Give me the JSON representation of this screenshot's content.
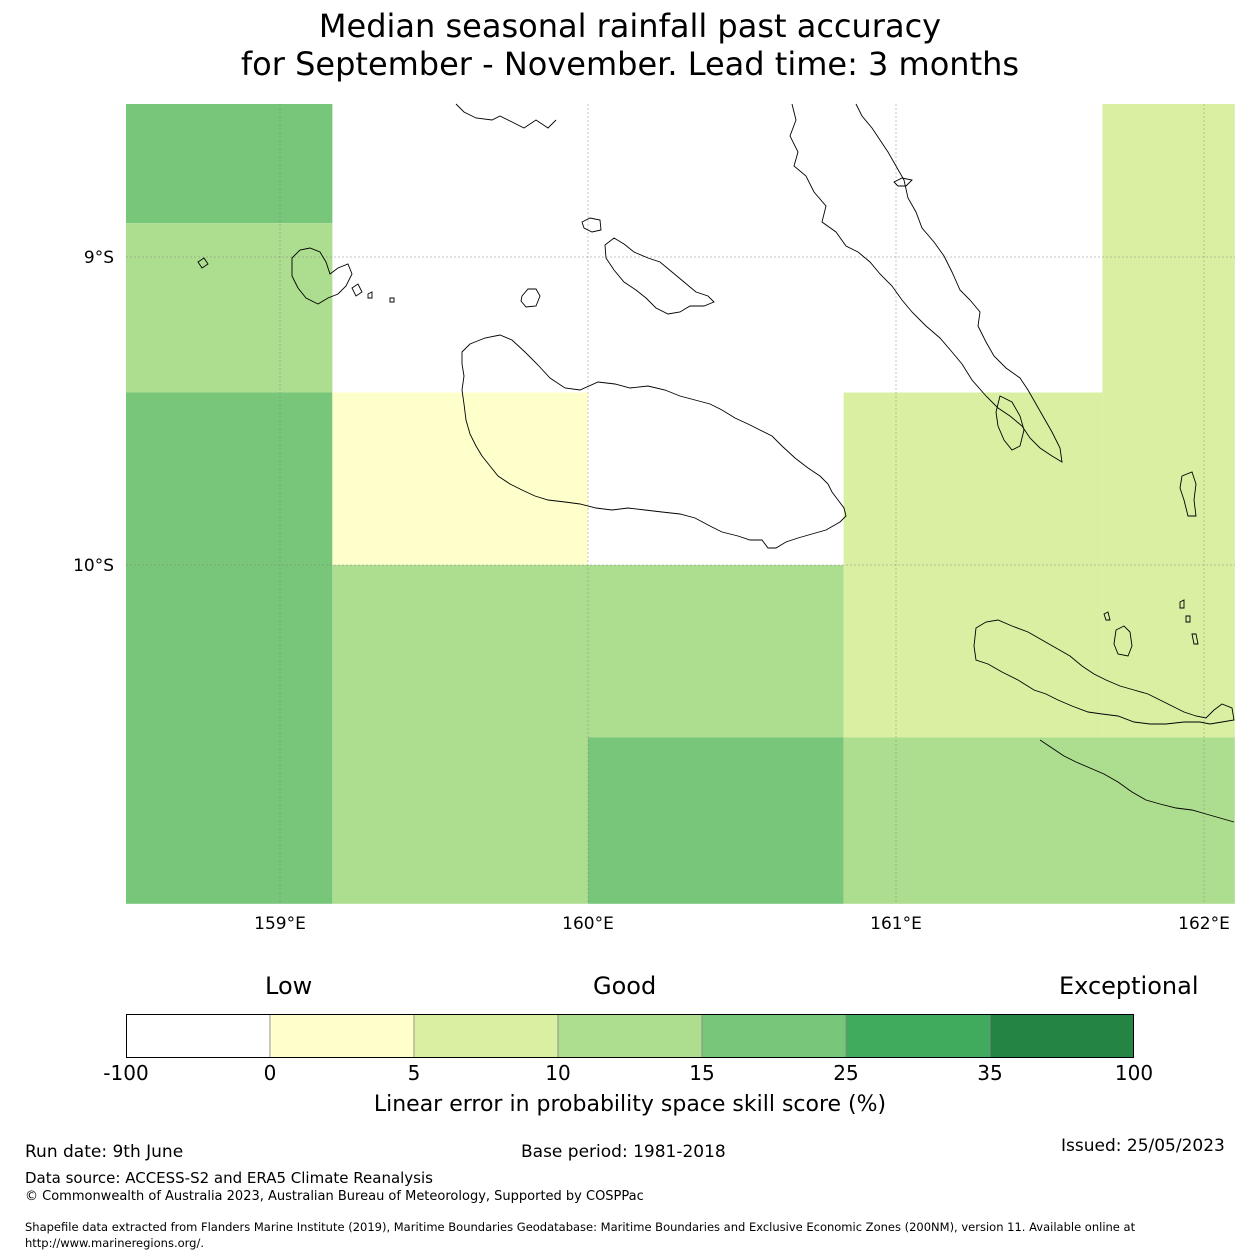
{
  "title": {
    "line1": "Median seasonal rainfall past accuracy",
    "line2": "for September - November. Lead time: 3 months"
  },
  "map": {
    "lat_labels": [
      {
        "label": "9°S",
        "lat": -9.0
      },
      {
        "label": "10°S",
        "lat": -10.0
      }
    ],
    "lon_labels": [
      {
        "label": "159°E",
        "lon": 159.0
      },
      {
        "label": "160°E",
        "lon": 160.0
      },
      {
        "label": "161°E",
        "lon": 161.0
      },
      {
        "label": "162°E",
        "lon": 162.0
      }
    ],
    "extent": {
      "lon_min": 158.5,
      "lon_max": 162.1,
      "lat_min": -11.1,
      "lat_max": -8.5
    },
    "cells": [
      {
        "lon0": 158.5,
        "lon1": 159.17,
        "lat0": -8.5,
        "lat1": -8.89,
        "skill_class": "15-25"
      },
      {
        "lon0": 158.5,
        "lon1": 159.17,
        "lat0": -8.89,
        "lat1": -9.44,
        "skill_class": "10-15"
      },
      {
        "lon0": 158.5,
        "lon1": 159.17,
        "lat0": -9.44,
        "lat1": -11.1,
        "skill_class": "15-25"
      },
      {
        "lon0": 159.17,
        "lon1": 160.0,
        "lat0": -9.44,
        "lat1": -10.0,
        "skill_class": "0-5"
      },
      {
        "lon0": 159.17,
        "lon1": 160.0,
        "lat0": -10.0,
        "lat1": -11.1,
        "skill_class": "10-15"
      },
      {
        "lon0": 160.0,
        "lon1": 160.83,
        "lat0": -10.0,
        "lat1": -10.56,
        "skill_class": "10-15"
      },
      {
        "lon0": 160.0,
        "lon1": 160.83,
        "lat0": -10.56,
        "lat1": -11.1,
        "skill_class": "15-25"
      },
      {
        "lon0": 160.83,
        "lon1": 161.67,
        "lat0": -9.44,
        "lat1": -10.56,
        "skill_class": "5-10"
      },
      {
        "lon0": 161.67,
        "lon1": 162.1,
        "lat0": -8.5,
        "lat1": -10.56,
        "skill_class": "5-10"
      },
      {
        "lon0": 160.83,
        "lon1": 162.1,
        "lat0": -10.56,
        "lat1": -11.1,
        "skill_class": "10-15"
      }
    ]
  },
  "colorbar": {
    "category_labels": {
      "low": "Low",
      "good": "Good",
      "exceptional": "Exceptional"
    },
    "bins": [
      {
        "range": "-100-0",
        "color": "#ffffff"
      },
      {
        "range": "0-5",
        "color": "#ffffcc"
      },
      {
        "range": "5-10",
        "color": "#d9f0a3"
      },
      {
        "range": "10-15",
        "color": "#addd8e"
      },
      {
        "range": "15-25",
        "color": "#78c679"
      },
      {
        "range": "25-35",
        "color": "#41ab5d"
      },
      {
        "range": "35-100",
        "color": "#238443"
      }
    ],
    "ticks": [
      "-100",
      "0",
      "5",
      "10",
      "15",
      "25",
      "35",
      "100"
    ],
    "label": "Linear error in probability space skill score (%)"
  },
  "footer": {
    "run_date": "Run date: 9th June",
    "base_period": "Base period: 1981-2018",
    "issued": "Issued: 25/05/2023",
    "data_source": "Data source: ACCESS-S2 and ERA5 Climate Reanalysis",
    "copyright": "© Commonwealth of Australia 2023, Australian Bureau of Meteorology, Supported by COSPPac",
    "shapefile_line1": "Shapefile data extracted from Flanders Marine Institute (2019), Maritime Boundaries Geodatabase: Maritime Boundaries and Exclusive Economic Zones (200NM), version 11. Available online at",
    "shapefile_line2": "http://www.marineregions.org/."
  }
}
